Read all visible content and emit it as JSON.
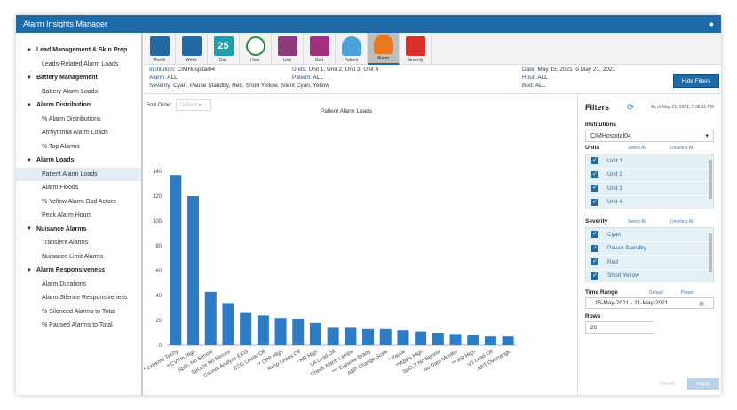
{
  "app": {
    "title": "Alarm Insights Manager",
    "user_icon": "user-icon"
  },
  "sidebar": [
    {
      "label": "Lead Management & Skin Prep",
      "items": [
        "Leads-Related Alarm Loads"
      ]
    },
    {
      "label": "Battery Management",
      "items": [
        "Battery Alarm Loads"
      ]
    },
    {
      "label": "Alarm Distribution",
      "items": [
        "% Alarm Distributions",
        "Arrhythmia Alarm Loads",
        "% Top Alarms"
      ]
    },
    {
      "label": "Alarm Loads",
      "items": [
        "Patient Alarm Loads",
        "Alarm Floods",
        "% Yellow Alarm Bad Actors",
        "Peak Alarm Hours"
      ]
    },
    {
      "label": "Nuisance Alarms",
      "items": [
        "Transient Alarms",
        "Nuisance Limit Alarms"
      ]
    },
    {
      "label": "Alarm Responsiveness",
      "items": [
        "Alarm Durations",
        "Alarm Silence Responsiveness",
        "% Silenced Alarms to Total",
        "% Paused Alarms to Total"
      ]
    }
  ],
  "selected_item": "Patient Alarm Loads",
  "toolbar": [
    {
      "label": "Month",
      "icon": "calendar-month-icon",
      "color": "#1f6aa5"
    },
    {
      "label": "Week",
      "icon": "calendar-chart-icon",
      "color": "#1f6aa5"
    },
    {
      "label": "Day",
      "icon": "calendar-day-icon",
      "color": "#1aa0a8",
      "text": "25"
    },
    {
      "label": "Hour",
      "icon": "clock-icon",
      "color": "#2d8a3e"
    },
    {
      "label": "Unit",
      "icon": "building-icon",
      "color": "#8e3a7a"
    },
    {
      "label": "Bed",
      "icon": "bed-icon",
      "color": "#a3307f"
    },
    {
      "label": "Patient",
      "icon": "person-icon",
      "color": "#4aa3d8"
    },
    {
      "label": "Alarm",
      "icon": "bell-icon",
      "color": "#e87722",
      "active": true
    },
    {
      "label": "Severity",
      "icon": "siren-icon",
      "color": "#d9302c"
    }
  ],
  "info": {
    "institution_k": "Institution:",
    "institution": "CIMHospital04",
    "alarm_k": "Alarm:",
    "alarm": "ALL",
    "severity_k": "Severity:",
    "severity": "Cyan, Pause Standby, Red, Short Yellow, Silent Cyan, Yellow",
    "units_k": "Units:",
    "units": "Unit 1, Unit 2, Unit 3, Unit 4",
    "patient_k": "Patient:",
    "patient": "ALL",
    "date_k": "Date:",
    "date": "May 15, 2021 to May 21, 2021",
    "hour_k": "Hour:",
    "hour": "ALL",
    "bed_k": "Bed:",
    "bed": "ALL",
    "hide_filters": "Hide Filters"
  },
  "sort": {
    "label": "Sort Order",
    "value": "Default"
  },
  "chart_data": {
    "type": "bar",
    "title": "Patient Alarm Loads",
    "xlabel": "",
    "ylabel": "",
    "ylim": [
      0,
      140
    ],
    "yticks": [
      0,
      20,
      40,
      60,
      80,
      100,
      120,
      140
    ],
    "grid": false,
    "color": "#2f7bc4",
    "categories": [
      "** Extreme Tachy",
      "**CVPm High",
      "SpO₂ No Sensor",
      "SpO₂pr No Sensor",
      "Cannot Analyze ECG",
      "ECG Leads Off",
      "** CPP High",
      "Resp Leads Off",
      "* HR High",
      "LA Lead Off",
      "Check Alarm Lamps",
      "*** Extreme Brady",
      "ABP Change Scale",
      "* Pause",
      "**ABPs High",
      "SpO₂T No Sensor",
      "No Data Monitor",
      "** RR High",
      "V3 Lead Off",
      "ART Overrange"
    ],
    "values": [
      137,
      120,
      43,
      34,
      26,
      24,
      22,
      21,
      18,
      14,
      14,
      13,
      13,
      12,
      11,
      10,
      9,
      8,
      7,
      7
    ]
  },
  "filters": {
    "title": "Filters",
    "as_of": "As of May 21, 2021, 2:38:11 PM",
    "institutions_label": "Institutions",
    "institution": "CIMHospital04",
    "units_label": "Units",
    "select_all": "Select All",
    "unselect_all": "Unselect All",
    "units": [
      "Unit 1",
      "Unit 2",
      "Unit 3",
      "Unit 4"
    ],
    "severity_label": "Severity",
    "severities": [
      "Cyan",
      "Pause Standby",
      "Red",
      "Short Yellow"
    ],
    "time_label": "Time Range",
    "default": "Default",
    "preset": "Preset",
    "time": "15-May-2021 - 21-May-2021",
    "rows_label": "Rows",
    "rows": "20",
    "reset": "Reset",
    "apply": "Apply"
  }
}
